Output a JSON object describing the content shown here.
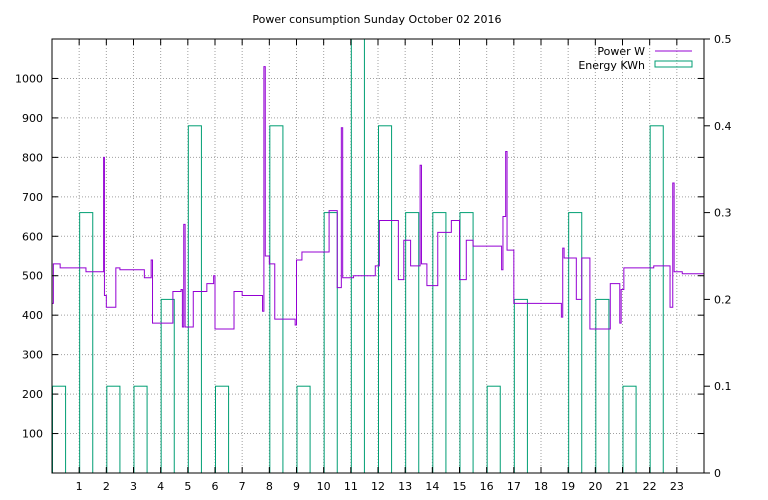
{
  "chart_data": {
    "type": "line",
    "title": "Power consumption Sunday October 02 2016",
    "x_ticks": [
      "1",
      "2",
      "3",
      "4",
      "5",
      "6",
      "7",
      "8",
      "9",
      "10",
      "11",
      "12",
      "13",
      "14",
      "15",
      "16",
      "17",
      "18",
      "19",
      "20",
      "21",
      "22",
      "23"
    ],
    "xlim": [
      0,
      24
    ],
    "ylim": [
      0,
      1100
    ],
    "y_ticks": [
      100,
      200,
      300,
      400,
      500,
      600,
      700,
      800,
      900,
      1000
    ],
    "y2lim": [
      0,
      0.5
    ],
    "y2_ticks": [
      "0",
      "0.1",
      "0.2",
      "0.3",
      "0.4",
      "0.5"
    ],
    "grid": true,
    "legend_position": "top-right",
    "colors": {
      "power": "#9400d3",
      "energy": "#009e73",
      "grid": "#a0a0a0"
    },
    "series": [
      {
        "name": "Power W",
        "axis": "left",
        "style": "steps",
        "points": [
          [
            0.0,
            430
          ],
          [
            0.05,
            530
          ],
          [
            0.3,
            520
          ],
          [
            1.25,
            510
          ],
          [
            1.85,
            510
          ],
          [
            1.9,
            800
          ],
          [
            1.93,
            450
          ],
          [
            2.0,
            420
          ],
          [
            2.3,
            420
          ],
          [
            2.35,
            520
          ],
          [
            2.5,
            515
          ],
          [
            3.4,
            495
          ],
          [
            3.65,
            540
          ],
          [
            3.7,
            380
          ],
          [
            4.4,
            380
          ],
          [
            4.45,
            460
          ],
          [
            4.75,
            465
          ],
          [
            4.8,
            370
          ],
          [
            4.85,
            630
          ],
          [
            4.9,
            370
          ],
          [
            5.2,
            460
          ],
          [
            5.7,
            480
          ],
          [
            5.95,
            500
          ],
          [
            6.0,
            365
          ],
          [
            6.7,
            460
          ],
          [
            7.0,
            450
          ],
          [
            7.75,
            410
          ],
          [
            7.8,
            1030
          ],
          [
            7.85,
            550
          ],
          [
            8.0,
            530
          ],
          [
            8.2,
            390
          ],
          [
            8.95,
            375
          ],
          [
            9.0,
            540
          ],
          [
            9.2,
            560
          ],
          [
            10.2,
            665
          ],
          [
            10.5,
            470
          ],
          [
            10.65,
            875
          ],
          [
            10.7,
            495
          ],
          [
            11.1,
            500
          ],
          [
            11.9,
            525
          ],
          [
            12.05,
            640
          ],
          [
            12.75,
            490
          ],
          [
            12.95,
            590
          ],
          [
            13.2,
            525
          ],
          [
            13.55,
            780
          ],
          [
            13.6,
            530
          ],
          [
            13.8,
            475
          ],
          [
            14.2,
            610
          ],
          [
            14.7,
            640
          ],
          [
            15.0,
            490
          ],
          [
            15.25,
            590
          ],
          [
            15.5,
            575
          ],
          [
            16.55,
            515
          ],
          [
            16.6,
            650
          ],
          [
            16.7,
            815
          ],
          [
            16.75,
            565
          ],
          [
            17.0,
            430
          ],
          [
            18.75,
            395
          ],
          [
            18.8,
            570
          ],
          [
            18.85,
            545
          ],
          [
            19.3,
            440
          ],
          [
            19.5,
            545
          ],
          [
            19.8,
            365
          ],
          [
            20.55,
            480
          ],
          [
            20.9,
            380
          ],
          [
            20.95,
            465
          ],
          [
            21.05,
            520
          ],
          [
            22.15,
            525
          ],
          [
            22.75,
            420
          ],
          [
            22.85,
            735
          ],
          [
            22.9,
            510
          ],
          [
            23.2,
            505
          ],
          [
            24.0,
            505
          ]
        ]
      },
      {
        "name": "Energy KWh",
        "axis": "right",
        "style": "boxes",
        "boxes": [
          [
            0,
            0.1
          ],
          [
            1,
            0.3
          ],
          [
            2,
            0.1
          ],
          [
            3,
            0.1
          ],
          [
            4,
            0.2
          ],
          [
            5,
            0.4
          ],
          [
            6,
            0.1
          ],
          [
            7,
            0
          ],
          [
            8,
            0.4
          ],
          [
            9,
            0.1
          ],
          [
            10,
            0.3
          ],
          [
            11,
            0.5
          ],
          [
            12,
            0.4
          ],
          [
            13,
            0.3
          ],
          [
            14,
            0.3
          ],
          [
            15,
            0.3
          ],
          [
            16,
            0.1
          ],
          [
            17,
            0.2
          ],
          [
            18,
            0
          ],
          [
            19,
            0.3
          ],
          [
            20,
            0.2
          ],
          [
            21,
            0.1
          ],
          [
            22,
            0.4
          ],
          [
            23,
            0
          ]
        ]
      }
    ]
  }
}
